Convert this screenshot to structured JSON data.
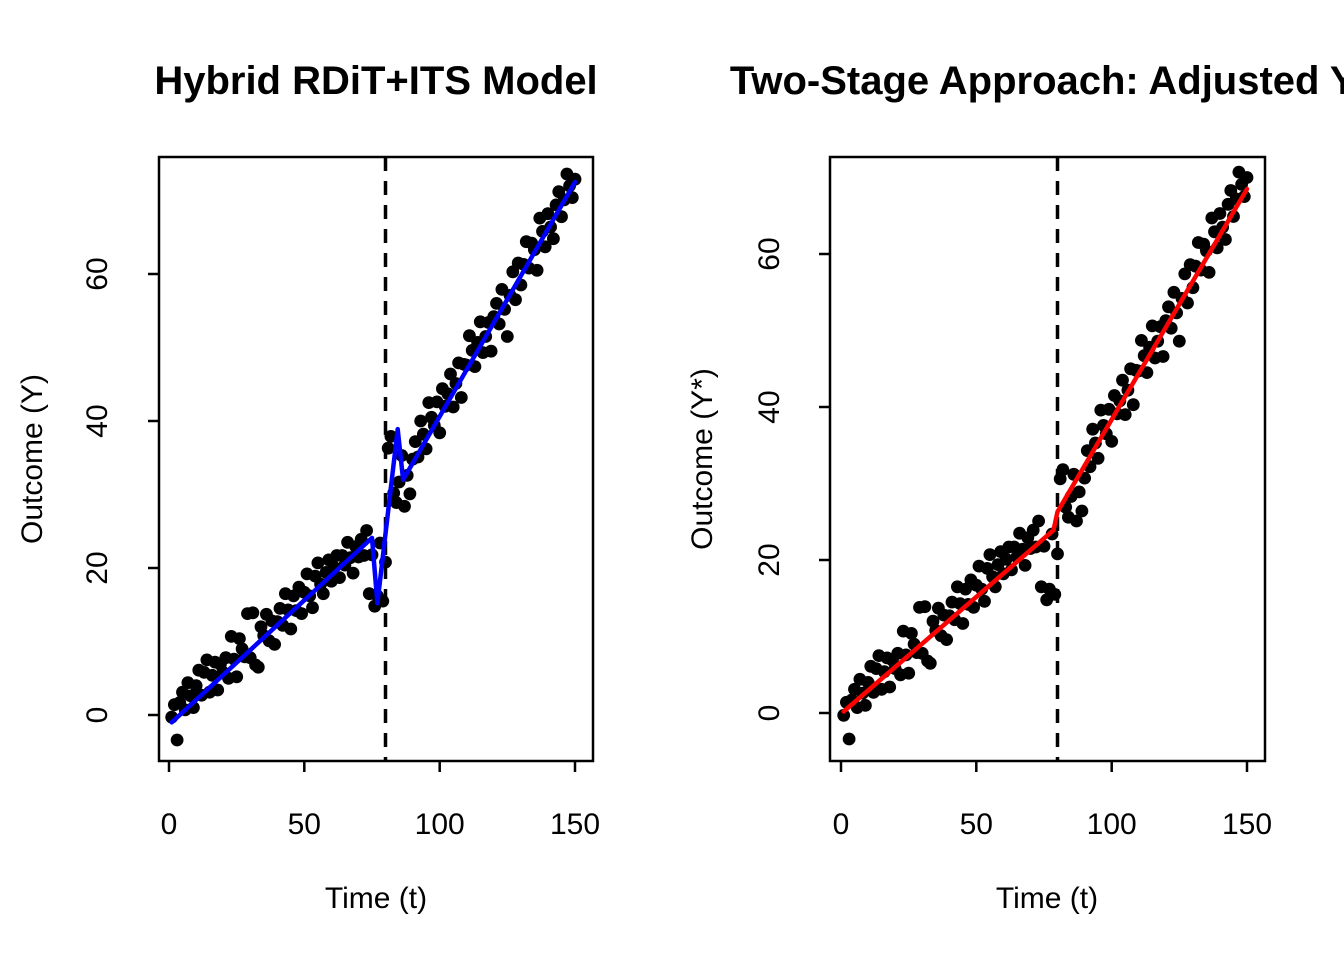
{
  "figure": {
    "background": "#ffffff",
    "text_color": "#000000"
  },
  "chart_data": [
    {
      "type": "scatter",
      "title": "Hybrid RDiT+ITS Model",
      "xlabel": "Time (t)",
      "ylabel": "Outcome (Y)",
      "x_ticks": [
        0,
        50,
        100,
        150
      ],
      "y_ticks": [
        0,
        20,
        40,
        60
      ],
      "xlim": [
        -4,
        156
      ],
      "ylim": [
        -6.4,
        76
      ],
      "grid": false,
      "legend": "none",
      "point_color": "#000000",
      "point_marker": "filled-circle",
      "fit_line_color": "#0000FF",
      "cutoff_x": 80,
      "cutoff_line_color": "#000000",
      "cutoff_line_style": "dashed",
      "fit_line": [
        [
          1,
          -1.0
        ],
        [
          75,
          24.1
        ],
        [
          77,
          15.2
        ],
        [
          84.5,
          38.9
        ],
        [
          86.5,
          32.0
        ],
        [
          150,
          72.5
        ]
      ],
      "points": [
        [
          1,
          -0.3
        ],
        [
          2,
          1.4
        ],
        [
          3,
          -3.4
        ],
        [
          4,
          1.7
        ],
        [
          5,
          3.1
        ],
        [
          6,
          0.7
        ],
        [
          7,
          4.4
        ],
        [
          8,
          2.6
        ],
        [
          9,
          1.0
        ],
        [
          10,
          4.0
        ],
        [
          11,
          6.1
        ],
        [
          12,
          2.7
        ],
        [
          13,
          5.8
        ],
        [
          14,
          7.5
        ],
        [
          15,
          3.1
        ],
        [
          16,
          5.4
        ],
        [
          17,
          7.2
        ],
        [
          18,
          3.4
        ],
        [
          19,
          6.9
        ],
        [
          20,
          5.8
        ],
        [
          21,
          7.8
        ],
        [
          22,
          5.0
        ],
        [
          23,
          10.7
        ],
        [
          24,
          7.6
        ],
        [
          25,
          5.2
        ],
        [
          26,
          10.4
        ],
        [
          27,
          9.0
        ],
        [
          28,
          7.9
        ],
        [
          29,
          13.8
        ],
        [
          30,
          7.8
        ],
        [
          31,
          13.9
        ],
        [
          32,
          6.8
        ],
        [
          33,
          6.5
        ],
        [
          34,
          12.0
        ],
        [
          35,
          10.8
        ],
        [
          36,
          13.7
        ],
        [
          37,
          10.1
        ],
        [
          38,
          12.8
        ],
        [
          39,
          9.6
        ],
        [
          40,
          12.7
        ],
        [
          41,
          14.5
        ],
        [
          42,
          12.2
        ],
        [
          43,
          16.5
        ],
        [
          44,
          14.3
        ],
        [
          45,
          11.7
        ],
        [
          46,
          16.2
        ],
        [
          47,
          14.2
        ],
        [
          48,
          17.4
        ],
        [
          49,
          13.8
        ],
        [
          50,
          16.7
        ],
        [
          51,
          19.2
        ],
        [
          52,
          16.2
        ],
        [
          53,
          14.6
        ],
        [
          54,
          18.9
        ],
        [
          55,
          20.7
        ],
        [
          56,
          17.8
        ],
        [
          57,
          16.5
        ],
        [
          58,
          19.4
        ],
        [
          59,
          21.1
        ],
        [
          60,
          18.2
        ],
        [
          61,
          20.1
        ],
        [
          62,
          21.7
        ],
        [
          63,
          18.7
        ],
        [
          64,
          21.7
        ],
        [
          65,
          20.4
        ],
        [
          66,
          23.5
        ],
        [
          67,
          21.4
        ],
        [
          68,
          19.3
        ],
        [
          69,
          22.9
        ],
        [
          70,
          21.5
        ],
        [
          71,
          23.9
        ],
        [
          72,
          21.7
        ],
        [
          73,
          25.1
        ],
        [
          74,
          16.5
        ],
        [
          75,
          21.8
        ],
        [
          76,
          14.8
        ],
        [
          77,
          16.2
        ],
        [
          78,
          23.4
        ],
        [
          79,
          15.5
        ],
        [
          80,
          20.8
        ],
        [
          81,
          36.3
        ],
        [
          82,
          37.9
        ],
        [
          83,
          30.2
        ],
        [
          84,
          28.9
        ],
        [
          85,
          31.7
        ],
        [
          86,
          35.3
        ],
        [
          87,
          28.4
        ],
        [
          88,
          32.6
        ],
        [
          89,
          30.1
        ],
        [
          90,
          34.8
        ],
        [
          91,
          37.2
        ],
        [
          92,
          35.1
        ],
        [
          93,
          40.0
        ],
        [
          94,
          38.2
        ],
        [
          95,
          36.2
        ],
        [
          96,
          42.5
        ],
        [
          97,
          40.5
        ],
        [
          98,
          39.4
        ],
        [
          99,
          42.6
        ],
        [
          100,
          38.4
        ],
        [
          101,
          44.4
        ],
        [
          102,
          42.0
        ],
        [
          103,
          43.7
        ],
        [
          104,
          46.4
        ],
        [
          105,
          41.9
        ],
        [
          106,
          45.1
        ],
        [
          107,
          47.9
        ],
        [
          108,
          43.2
        ],
        [
          109,
          47.7
        ],
        [
          110,
          47.6
        ],
        [
          111,
          51.6
        ],
        [
          112,
          49.6
        ],
        [
          113,
          47.4
        ],
        [
          114,
          50.7
        ],
        [
          115,
          53.5
        ],
        [
          116,
          49.3
        ],
        [
          117,
          51.5
        ],
        [
          118,
          53.4
        ],
        [
          119,
          49.5
        ],
        [
          120,
          54.2
        ],
        [
          121,
          56.0
        ],
        [
          122,
          53.2
        ],
        [
          123,
          57.9
        ],
        [
          124,
          55.2
        ],
        [
          125,
          51.5
        ],
        [
          126,
          57.1
        ],
        [
          127,
          60.3
        ],
        [
          128,
          56.5
        ],
        [
          129,
          61.5
        ],
        [
          130,
          58.5
        ],
        [
          131,
          61.3
        ],
        [
          132,
          64.4
        ],
        [
          133,
          60.8
        ],
        [
          134,
          64.2
        ],
        [
          135,
          63.3
        ],
        [
          136,
          60.5
        ],
        [
          137,
          67.6
        ],
        [
          138,
          65.8
        ],
        [
          139,
          63.7
        ],
        [
          140,
          68.2
        ],
        [
          141,
          66.4
        ],
        [
          142,
          64.8
        ],
        [
          143,
          69.4
        ],
        [
          144,
          71.2
        ],
        [
          145,
          67.8
        ],
        [
          146,
          70.1
        ],
        [
          147,
          73.6
        ],
        [
          148,
          72.0
        ],
        [
          149,
          70.4
        ],
        [
          150,
          72.9
        ]
      ]
    },
    {
      "type": "scatter",
      "title": "Two-Stage Approach: Adjusted Y*",
      "xlabel": "Time (t)",
      "ylabel": "Outcome (Y*)",
      "x_ticks": [
        0,
        50,
        100,
        150
      ],
      "y_ticks": [
        0,
        20,
        40,
        60
      ],
      "xlim": [
        -4,
        156
      ],
      "ylim": [
        -6.4,
        72.7
      ],
      "grid": false,
      "legend": "none",
      "point_color": "#000000",
      "point_marker": "filled-circle",
      "fit_line_color": "#FF0000",
      "cutoff_x": 80,
      "cutoff_line_color": "#000000",
      "cutoff_line_style": "dashed",
      "fit_line": [
        [
          1,
          0.2
        ],
        [
          78.5,
          23.9
        ],
        [
          80,
          26.3
        ],
        [
          150,
          68.5
        ]
      ],
      "points": [
        [
          1,
          -0.3
        ],
        [
          2,
          1.4
        ],
        [
          3,
          -3.4
        ],
        [
          4,
          1.7
        ],
        [
          5,
          3.1
        ],
        [
          6,
          0.7
        ],
        [
          7,
          4.4
        ],
        [
          8,
          2.6
        ],
        [
          9,
          1.0
        ],
        [
          10,
          4.0
        ],
        [
          11,
          6.1
        ],
        [
          12,
          2.7
        ],
        [
          13,
          5.8
        ],
        [
          14,
          7.5
        ],
        [
          15,
          3.1
        ],
        [
          16,
          5.4
        ],
        [
          17,
          7.2
        ],
        [
          18,
          3.4
        ],
        [
          19,
          6.9
        ],
        [
          20,
          5.8
        ],
        [
          21,
          7.8
        ],
        [
          22,
          5.0
        ],
        [
          23,
          10.7
        ],
        [
          24,
          7.6
        ],
        [
          25,
          5.2
        ],
        [
          26,
          10.4
        ],
        [
          27,
          9.0
        ],
        [
          28,
          7.9
        ],
        [
          29,
          13.8
        ],
        [
          30,
          7.8
        ],
        [
          31,
          13.9
        ],
        [
          32,
          6.8
        ],
        [
          33,
          6.5
        ],
        [
          34,
          12.0
        ],
        [
          35,
          10.8
        ],
        [
          36,
          13.7
        ],
        [
          37,
          10.1
        ],
        [
          38,
          12.8
        ],
        [
          39,
          9.6
        ],
        [
          40,
          12.7
        ],
        [
          41,
          14.5
        ],
        [
          42,
          12.2
        ],
        [
          43,
          16.5
        ],
        [
          44,
          14.3
        ],
        [
          45,
          11.7
        ],
        [
          46,
          16.2
        ],
        [
          47,
          14.2
        ],
        [
          48,
          17.4
        ],
        [
          49,
          13.8
        ],
        [
          50,
          16.7
        ],
        [
          51,
          19.2
        ],
        [
          52,
          16.2
        ],
        [
          53,
          14.6
        ],
        [
          54,
          18.9
        ],
        [
          55,
          20.7
        ],
        [
          56,
          17.8
        ],
        [
          57,
          16.5
        ],
        [
          58,
          19.4
        ],
        [
          59,
          21.1
        ],
        [
          60,
          18.2
        ],
        [
          61,
          20.1
        ],
        [
          62,
          21.7
        ],
        [
          63,
          18.7
        ],
        [
          64,
          21.7
        ],
        [
          65,
          20.4
        ],
        [
          66,
          23.5
        ],
        [
          67,
          21.4
        ],
        [
          68,
          19.3
        ],
        [
          69,
          22.9
        ],
        [
          70,
          21.5
        ],
        [
          71,
          23.9
        ],
        [
          72,
          21.7
        ],
        [
          73,
          25.1
        ],
        [
          74,
          16.5
        ],
        [
          75,
          21.8
        ],
        [
          76,
          14.8
        ],
        [
          77,
          16.2
        ],
        [
          78,
          23.4
        ],
        [
          79,
          15.5
        ],
        [
          80,
          20.8
        ],
        [
          81,
          30.6
        ],
        [
          82,
          31.8
        ],
        [
          83,
          26.9
        ],
        [
          84,
          25.6
        ],
        [
          85,
          28.3
        ],
        [
          86,
          31.2
        ],
        [
          87,
          25.1
        ],
        [
          88,
          28.9
        ],
        [
          89,
          26.4
        ],
        [
          90,
          30.7
        ],
        [
          91,
          34.3
        ],
        [
          92,
          32.2
        ],
        [
          93,
          37.1
        ],
        [
          94,
          35.3
        ],
        [
          95,
          33.3
        ],
        [
          96,
          39.6
        ],
        [
          97,
          37.6
        ],
        [
          98,
          36.5
        ],
        [
          99,
          39.7
        ],
        [
          100,
          35.5
        ],
        [
          101,
          41.5
        ],
        [
          102,
          39.1
        ],
        [
          103,
          40.8
        ],
        [
          104,
          43.5
        ],
        [
          105,
          39.0
        ],
        [
          106,
          42.2
        ],
        [
          107,
          45.0
        ],
        [
          108,
          40.3
        ],
        [
          109,
          44.8
        ],
        [
          110,
          44.7
        ],
        [
          111,
          48.7
        ],
        [
          112,
          46.7
        ],
        [
          113,
          44.5
        ],
        [
          114,
          47.8
        ],
        [
          115,
          50.6
        ],
        [
          116,
          46.4
        ],
        [
          117,
          48.6
        ],
        [
          118,
          50.5
        ],
        [
          119,
          46.6
        ],
        [
          120,
          51.3
        ],
        [
          121,
          53.1
        ],
        [
          122,
          50.3
        ],
        [
          123,
          55.0
        ],
        [
          124,
          52.3
        ],
        [
          125,
          48.6
        ],
        [
          126,
          54.2
        ],
        [
          127,
          57.4
        ],
        [
          128,
          53.6
        ],
        [
          129,
          58.6
        ],
        [
          130,
          55.6
        ],
        [
          131,
          58.4
        ],
        [
          132,
          61.5
        ],
        [
          133,
          57.9
        ],
        [
          134,
          61.3
        ],
        [
          135,
          60.4
        ],
        [
          136,
          57.6
        ],
        [
          137,
          64.7
        ],
        [
          138,
          62.9
        ],
        [
          139,
          60.8
        ],
        [
          140,
          65.3
        ],
        [
          141,
          63.5
        ],
        [
          142,
          61.9
        ],
        [
          143,
          66.5
        ],
        [
          144,
          68.3
        ],
        [
          145,
          64.9
        ],
        [
          146,
          67.2
        ],
        [
          147,
          70.7
        ],
        [
          148,
          69.1
        ],
        [
          149,
          67.5
        ],
        [
          150,
          70.0
        ]
      ]
    }
  ]
}
